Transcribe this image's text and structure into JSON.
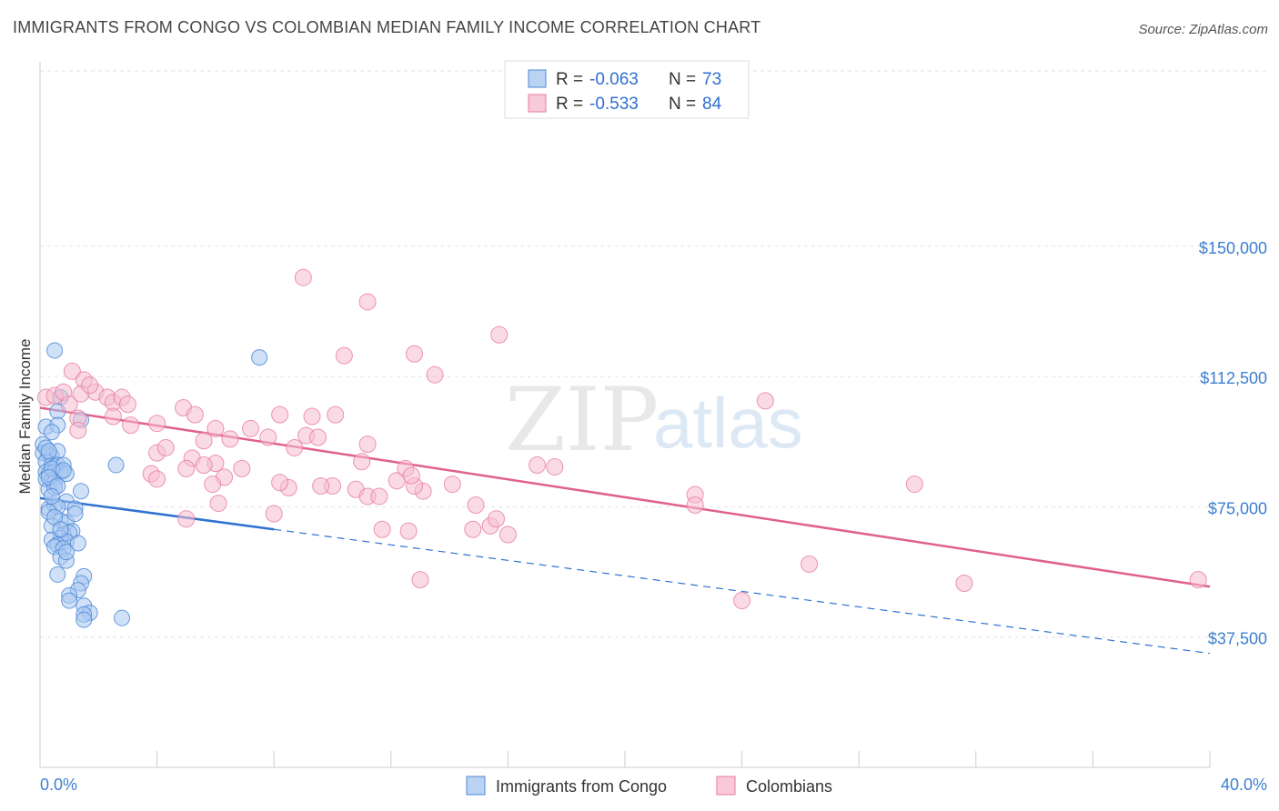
{
  "header": {
    "title": "IMMIGRANTS FROM CONGO VS COLOMBIAN MEDIAN FAMILY INCOME CORRELATION CHART",
    "source": "Source: ZipAtlas.com"
  },
  "watermark": {
    "zip": "ZIP",
    "atlas": "atlas"
  },
  "legend": {
    "rows": [
      {
        "r_label": "R =",
        "r_value": "-0.063",
        "n_label": "N =",
        "n_value": "73"
      },
      {
        "r_label": "R =",
        "r_value": "-0.533",
        "n_label": "N =",
        "n_value": "84"
      }
    ]
  },
  "bottom_legend": [
    "Immigrants from Congo",
    "Colombians"
  ],
  "colors": {
    "congo_fill": "#a9c8f0",
    "congo_stroke": "#4f8ad8",
    "congo_line": "#2f72d0",
    "colombian_fill": "#f6bdd0",
    "colombian_stroke": "#e77aa0",
    "colombian_line": "#e0608e",
    "tick_text": "#3d7fd0",
    "grid": "#e2e2e2"
  },
  "chart_data": {
    "type": "scatter",
    "title": "IMMIGRANTS FROM CONGO VS COLOMBIAN MEDIAN FAMILY INCOME CORRELATION CHART",
    "xlabel": "",
    "ylabel": "Median Family Income",
    "xlim": [
      0,
      40
    ],
    "ylim": [
      0,
      155000
    ],
    "x_tick_labels": [
      "0.0%",
      "40.0%"
    ],
    "y_ticks": [
      37500,
      75000,
      112500,
      150000
    ],
    "y_tick_labels": [
      "$37,500",
      "$75,000",
      "$112,500",
      "$150,000"
    ],
    "grid": true,
    "legend_position": "top-center",
    "series": [
      {
        "name": "Immigrants from Congo",
        "r": -0.063,
        "n": 73,
        "trend": {
          "x": [
            0.0,
            8.0
          ],
          "y": [
            77500,
            68500
          ]
        },
        "trend_extension": {
          "x": [
            8.0,
            40.0
          ],
          "y": [
            68500,
            32800
          ]
        },
        "points": [
          [
            0.5,
            120000
          ],
          [
            7.5,
            118000
          ],
          [
            0.7,
            106500
          ],
          [
            0.6,
            102500
          ],
          [
            1.4,
            100000
          ],
          [
            0.2,
            98000
          ],
          [
            0.6,
            98500
          ],
          [
            0.4,
            96500
          ],
          [
            0.1,
            93000
          ],
          [
            0.1,
            90500
          ],
          [
            0.3,
            90000
          ],
          [
            0.4,
            89500
          ],
          [
            0.6,
            91000
          ],
          [
            0.2,
            88000
          ],
          [
            0.4,
            87000
          ],
          [
            0.5,
            86500
          ],
          [
            0.6,
            87000
          ],
          [
            0.8,
            87000
          ],
          [
            2.6,
            87000
          ],
          [
            0.2,
            85000
          ],
          [
            0.3,
            84500
          ],
          [
            0.5,
            85000
          ],
          [
            0.7,
            85000
          ],
          [
            0.9,
            84500
          ],
          [
            0.2,
            83000
          ],
          [
            0.4,
            82500
          ],
          [
            0.5,
            82000
          ],
          [
            0.3,
            80000
          ],
          [
            0.5,
            80500
          ],
          [
            1.4,
            79500
          ],
          [
            0.9,
            76500
          ],
          [
            0.3,
            74500
          ],
          [
            0.5,
            75500
          ],
          [
            0.6,
            75000
          ],
          [
            1.2,
            74500
          ],
          [
            0.3,
            73500
          ],
          [
            0.7,
            71000
          ],
          [
            0.9,
            70500
          ],
          [
            0.4,
            69500
          ],
          [
            1.1,
            68000
          ],
          [
            0.8,
            67000
          ],
          [
            1.0,
            67500
          ],
          [
            0.7,
            66000
          ],
          [
            0.4,
            65500
          ],
          [
            0.9,
            65000
          ],
          [
            1.3,
            64500
          ],
          [
            0.6,
            64000
          ],
          [
            0.5,
            63500
          ],
          [
            0.8,
            63000
          ],
          [
            0.7,
            60500
          ],
          [
            0.9,
            59500
          ],
          [
            1.5,
            55000
          ],
          [
            0.6,
            55500
          ],
          [
            1.4,
            53000
          ],
          [
            1.3,
            51000
          ],
          [
            1.0,
            49500
          ],
          [
            1.0,
            48000
          ],
          [
            1.5,
            46500
          ],
          [
            1.7,
            44500
          ],
          [
            1.5,
            44000
          ],
          [
            1.5,
            42500
          ],
          [
            2.8,
            43000
          ],
          [
            0.2,
            92000
          ],
          [
            0.3,
            91000
          ],
          [
            0.4,
            86000
          ],
          [
            0.8,
            85500
          ],
          [
            0.3,
            83500
          ],
          [
            0.6,
            81000
          ],
          [
            0.4,
            78000
          ],
          [
            1.2,
            73000
          ],
          [
            0.5,
            72000
          ],
          [
            0.7,
            68500
          ],
          [
            0.9,
            62000
          ]
        ]
      },
      {
        "name": "Colombians",
        "r": -0.533,
        "n": 84,
        "trend": {
          "x": [
            0.0,
            40.0
          ],
          "y": [
            103500,
            52000
          ]
        },
        "points": [
          [
            0.2,
            106500
          ],
          [
            0.5,
            107000
          ],
          [
            0.8,
            108000
          ],
          [
            1.1,
            114000
          ],
          [
            1.5,
            111500
          ],
          [
            1.0,
            104500
          ],
          [
            1.4,
            107500
          ],
          [
            1.9,
            108000
          ],
          [
            1.7,
            110000
          ],
          [
            2.3,
            106500
          ],
          [
            2.5,
            105000
          ],
          [
            2.8,
            106500
          ],
          [
            3.0,
            104500
          ],
          [
            1.3,
            100500
          ],
          [
            2.5,
            101000
          ],
          [
            3.1,
            98500
          ],
          [
            4.0,
            99000
          ],
          [
            4.9,
            103500
          ],
          [
            5.3,
            101500
          ],
          [
            6.0,
            97500
          ],
          [
            5.6,
            94000
          ],
          [
            6.5,
            94500
          ],
          [
            8.2,
            101500
          ],
          [
            9.3,
            101000
          ],
          [
            10.1,
            101500
          ],
          [
            1.3,
            97000
          ],
          [
            4.0,
            90500
          ],
          [
            3.8,
            84500
          ],
          [
            5.2,
            89000
          ],
          [
            4.3,
            92000
          ],
          [
            5.0,
            86000
          ],
          [
            6.0,
            87500
          ],
          [
            5.6,
            87000
          ],
          [
            6.9,
            86000
          ],
          [
            7.8,
            95000
          ],
          [
            9.1,
            95500
          ],
          [
            10.0,
            81000
          ],
          [
            11.0,
            88000
          ],
          [
            11.2,
            93000
          ],
          [
            12.2,
            82500
          ],
          [
            12.5,
            86000
          ],
          [
            13.1,
            79500
          ],
          [
            4.0,
            83000
          ],
          [
            6.3,
            83500
          ],
          [
            5.9,
            81500
          ],
          [
            8.5,
            80500
          ],
          [
            8.2,
            82000
          ],
          [
            9.6,
            81000
          ],
          [
            10.8,
            80000
          ],
          [
            11.2,
            78000
          ],
          [
            11.6,
            78000
          ],
          [
            12.8,
            81000
          ],
          [
            14.1,
            81500
          ],
          [
            14.9,
            75500
          ],
          [
            8.0,
            73000
          ],
          [
            6.1,
            76000
          ],
          [
            5.0,
            71500
          ],
          [
            11.7,
            68500
          ],
          [
            12.6,
            68000
          ],
          [
            14.8,
            68500
          ],
          [
            15.4,
            69500
          ],
          [
            15.6,
            71500
          ],
          [
            16.0,
            67000
          ],
          [
            9.0,
            141000
          ],
          [
            11.2,
            134000
          ],
          [
            10.4,
            118500
          ],
          [
            12.8,
            119000
          ],
          [
            13.5,
            113000
          ],
          [
            15.7,
            124500
          ],
          [
            24.8,
            105500
          ],
          [
            17.0,
            87000
          ],
          [
            17.6,
            86500
          ],
          [
            22.4,
            78500
          ],
          [
            22.4,
            75500
          ],
          [
            26.3,
            58500
          ],
          [
            29.9,
            81500
          ],
          [
            31.6,
            53000
          ],
          [
            39.6,
            54000
          ],
          [
            24.0,
            48000
          ],
          [
            13.0,
            54000
          ],
          [
            7.2,
            97500
          ],
          [
            8.7,
            92000
          ],
          [
            9.5,
            95000
          ],
          [
            12.7,
            84000
          ]
        ]
      }
    ]
  }
}
